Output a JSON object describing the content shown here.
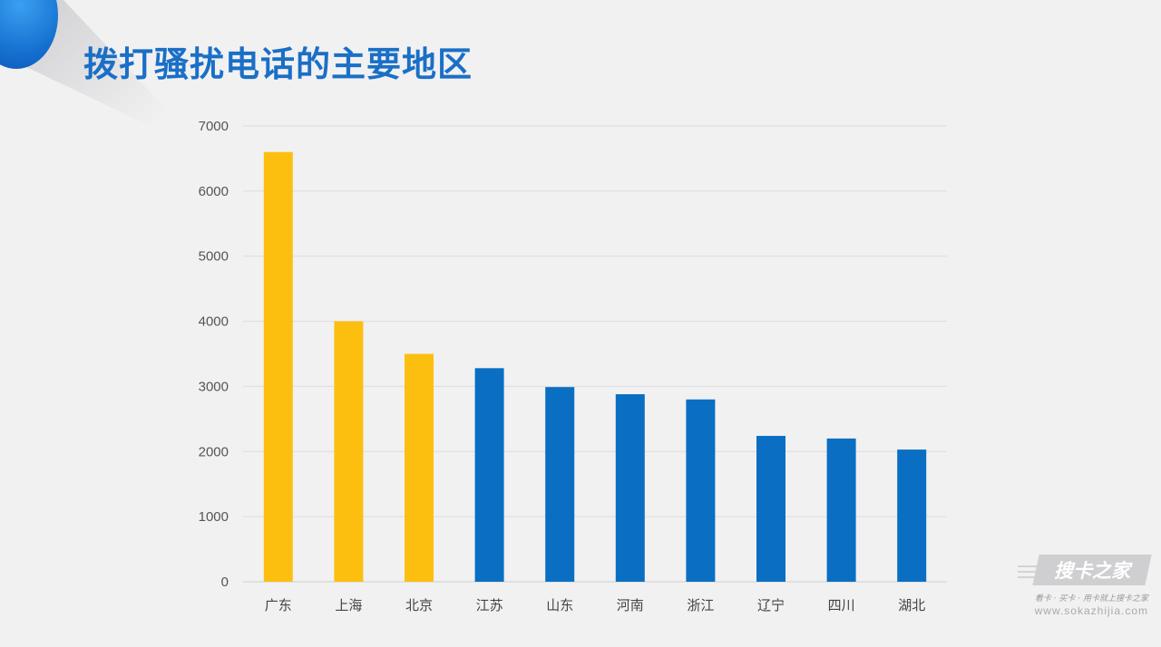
{
  "title": "拨打骚扰电话的主要地区",
  "chart_data": {
    "type": "bar",
    "categories": [
      "广东",
      "上海",
      "北京",
      "江苏",
      "山东",
      "河南",
      "浙江",
      "辽宁",
      "四川",
      "湖北"
    ],
    "values": [
      6600,
      4000,
      3500,
      3280,
      2990,
      2880,
      2800,
      2240,
      2200,
      2030
    ],
    "colors": [
      "#fdbf0f",
      "#fdbf0f",
      "#fdbf0f",
      "#0a6fc2",
      "#0a6fc2",
      "#0a6fc2",
      "#0a6fc2",
      "#0a6fc2",
      "#0a6fc2",
      "#0a6fc2"
    ],
    "y_ticks": [
      0,
      1000,
      2000,
      3000,
      4000,
      5000,
      6000,
      7000
    ],
    "ylim": [
      0,
      7000
    ],
    "grid": true,
    "xlabel": "",
    "ylabel": ""
  },
  "watermark": {
    "logo": "搜卡之家",
    "slogan": "看卡 · 买卡 · 用卡就上搜卡之家",
    "url": "www.sokazhijia.com"
  },
  "colors": {
    "title": "#1a6fc6",
    "highlight_bar": "#fdbf0f",
    "normal_bar": "#0a6fc2",
    "background": "#f1f1f2"
  }
}
